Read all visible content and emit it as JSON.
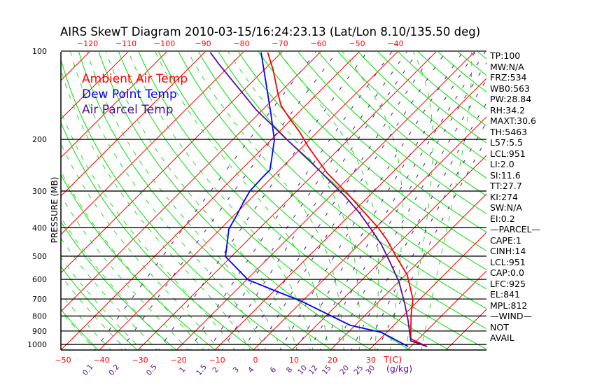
{
  "chart_data": {
    "type": "line",
    "subtype": "skew-t log-p",
    "title": "AIRS SkewT Diagram 2010-03-15/16:24:23.13 (Lat/Lon 8.10/135.50 deg)",
    "ylabel": "PRESSURE (MB)",
    "xlabel": "T(C)",
    "mixing_ratio_label": "(g/kg)",
    "ylim": [
      1050,
      100
    ],
    "pressure_ticks": [
      100,
      200,
      300,
      400,
      500,
      600,
      700,
      800,
      900,
      1000
    ],
    "top_temp_ticks": [
      -120,
      -110,
      -100,
      -90,
      -80,
      -70,
      -60,
      -50,
      -40
    ],
    "bottom_temp_ticks": [
      -50,
      -40,
      -30,
      -20,
      -10,
      0,
      10,
      20,
      30
    ],
    "mixing_ratio_ticks": [
      "0.1",
      "0.2",
      "0.5",
      "1",
      "1.5",
      "2",
      "3",
      "4",
      "6",
      "8",
      "10",
      "12",
      "15",
      "20",
      "25",
      "30"
    ],
    "legend": [
      "Ambient Air Temp",
      "Dew Point Temp",
      "Air Parcel Temp"
    ],
    "series": [
      {
        "name": "Ambient Air Temp",
        "color": "#ff0000",
        "points": [
          [
            101,
            -73.6
          ],
          [
            116,
            -67.6
          ],
          [
            139,
            -60.4
          ],
          [
            153,
            -56.4
          ],
          [
            168,
            -51.3
          ],
          [
            187,
            -45.1
          ],
          [
            212,
            -38.5
          ],
          [
            260,
            -26.9
          ],
          [
            307,
            -16.0
          ],
          [
            364,
            -5.3
          ],
          [
            399,
            0.5
          ],
          [
            441,
            6.2
          ],
          [
            511,
            13.8
          ],
          [
            580,
            20.5
          ],
          [
            700,
            28.2
          ],
          [
            792,
            31.8
          ],
          [
            946,
            37.6
          ],
          [
            961,
            38.4
          ],
          [
            1016,
            44.2
          ]
        ]
      },
      {
        "name": "Dew Point Temp",
        "color": "#0000ff",
        "points": [
          [
            101,
            -75.3
          ],
          [
            116,
            -70.0
          ],
          [
            137,
            -63.6
          ],
          [
            164,
            -56.7
          ],
          [
            201,
            -49.1
          ],
          [
            233,
            -44.9
          ],
          [
            254,
            -42.5
          ],
          [
            269,
            -42.5
          ],
          [
            300,
            -42.2
          ],
          [
            329,
            -40.9
          ],
          [
            368,
            -39.1
          ],
          [
            404,
            -37.8
          ],
          [
            502,
            -31.5
          ],
          [
            603,
            -19.5
          ],
          [
            711,
            -0.4
          ],
          [
            860,
            18.7
          ],
          [
            910,
            28.7
          ],
          [
            1016,
            39.3
          ]
        ]
      },
      {
        "name": "Air Parcel Temp",
        "color": "#5a0a96",
        "points": [
          [
            101,
            -88.5
          ],
          [
            111,
            -83.1
          ],
          [
            133,
            -72.2
          ],
          [
            159,
            -61.5
          ],
          [
            180,
            -53.1
          ],
          [
            204,
            -44.7
          ],
          [
            233,
            -35.5
          ],
          [
            264,
            -27.3
          ],
          [
            312,
            -16.2
          ],
          [
            354,
            -8.4
          ],
          [
            404,
            -0.9
          ],
          [
            458,
            6.0
          ],
          [
            531,
            13.3
          ],
          [
            613,
            20.2
          ],
          [
            723,
            27.1
          ],
          [
            826,
            32.4
          ],
          [
            972,
            38.5
          ],
          [
            1016,
            44.2
          ]
        ]
      }
    ]
  },
  "stats": [
    "TP:100",
    "MW:N/A",
    "FRZ:534",
    "WB0:563",
    "PW:28.84",
    "RH:34.2",
    "MAXT:30.6",
    "TH:5463",
    "L57:5.5",
    "LCL:951",
    " LI:2.0",
    "SI:11.6",
    "TT:27.7",
    "KI:274",
    "SW:N/A",
    " EI:0.2",
    "—PARCEL—",
    "CAPE:1",
    "CINH:14",
    "LCL:951",
    "CAP:0.0",
    "LFC:925",
    "EL:841",
    "MPL:812",
    "—WIND—",
    " NOT",
    "AVAIL"
  ],
  "colors": {
    "isotherm": "#ff0000",
    "dry_adiabat": "#00e000",
    "moist_adiabat": "#22dd22",
    "mixing_ratio": "#5a0a96",
    "pressure_line": "#000000"
  }
}
